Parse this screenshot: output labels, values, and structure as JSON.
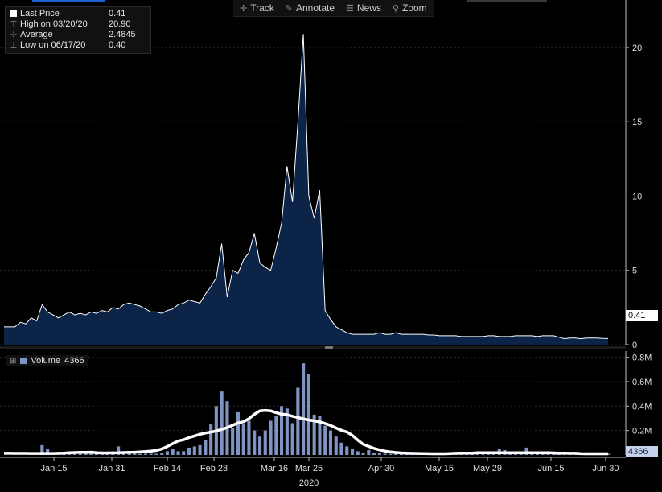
{
  "toolbar": {
    "items": [
      {
        "label": "Track",
        "icon": "crosshair-icon"
      },
      {
        "label": "Annotate",
        "icon": "pencil-icon"
      },
      {
        "label": "News",
        "icon": "news-icon"
      },
      {
        "label": "Zoom",
        "icon": "magnifier-icon"
      }
    ]
  },
  "legend": {
    "last_label": "Last Price",
    "last_value": "0.41",
    "high_label": "High on 03/20/20",
    "high_value": "20.90",
    "avg_label": "Average",
    "avg_value": "2.4845",
    "low_label": "Low on 06/17/20",
    "low_value": "0.40"
  },
  "volume_legend": {
    "label": "Volume",
    "value": "4366"
  },
  "price_tag": "0.41",
  "volume_tag": "4366",
  "colors": {
    "area_fill": "#0b2447",
    "line": "#ffffff",
    "volume_bar": "#8094c4",
    "moving_average": "#ffffff",
    "accent": "#1f5fd6"
  },
  "chart_data": {
    "type": "area",
    "year_label": "2020",
    "x_tick_labels": [
      "Jan 15",
      "Jan 31",
      "Feb 14",
      "Feb 28",
      "Mar 16",
      "Mar 25",
      "Apr 30",
      "May 15",
      "May 29",
      "Jun 15",
      "Jun 30"
    ],
    "price": {
      "ylim": [
        0,
        22
      ],
      "yticks": [
        "0",
        "5",
        "10",
        "15",
        "20"
      ],
      "values": [
        1.2,
        1.2,
        1.2,
        1.5,
        1.4,
        1.8,
        1.6,
        2.7,
        2.2,
        2.0,
        1.8,
        2.0,
        2.2,
        2.0,
        2.1,
        2.0,
        2.2,
        2.1,
        2.3,
        2.2,
        2.5,
        2.4,
        2.7,
        2.8,
        2.7,
        2.6,
        2.4,
        2.2,
        2.2,
        2.1,
        2.3,
        2.4,
        2.7,
        2.8,
        3.0,
        2.9,
        2.8,
        3.4,
        3.9,
        4.5,
        6.8,
        3.2,
        5.0,
        4.8,
        5.7,
        6.2,
        7.5,
        5.5,
        5.2,
        5.0,
        6.5,
        8.2,
        12.0,
        9.6,
        15.0,
        20.9,
        10.0,
        8.5,
        10.4,
        2.3,
        1.7,
        1.2,
        1.0,
        0.8,
        0.7,
        0.7,
        0.7,
        0.7,
        0.7,
        0.8,
        0.7,
        0.7,
        0.8,
        0.7,
        0.7,
        0.7,
        0.7,
        0.7,
        0.65,
        0.65,
        0.6,
        0.6,
        0.6,
        0.6,
        0.55,
        0.55,
        0.55,
        0.55,
        0.55,
        0.6,
        0.6,
        0.55,
        0.55,
        0.55,
        0.6,
        0.6,
        0.6,
        0.6,
        0.55,
        0.6,
        0.6,
        0.6,
        0.5,
        0.4,
        0.45,
        0.45,
        0.4,
        0.45,
        0.45,
        0.45,
        0.42,
        0.41
      ]
    },
    "volume": {
      "ylim": [
        0,
        0.85
      ],
      "unit": "M",
      "yticks": [
        "0.2M",
        "0.4M",
        "0.6M",
        "0.8M"
      ],
      "values": [
        0.0,
        0.0,
        0.0,
        0.0,
        0.0,
        0.0,
        0.0,
        0.08,
        0.05,
        0.01,
        0.01,
        0.01,
        0.01,
        0.01,
        0.01,
        0.01,
        0.01,
        0.01,
        0.02,
        0.02,
        0.02,
        0.07,
        0.03,
        0.02,
        0.01,
        0.01,
        0.01,
        0.01,
        0.01,
        0.02,
        0.03,
        0.05,
        0.03,
        0.03,
        0.06,
        0.07,
        0.08,
        0.12,
        0.25,
        0.4,
        0.52,
        0.44,
        0.22,
        0.35,
        0.25,
        0.28,
        0.2,
        0.15,
        0.2,
        0.28,
        0.32,
        0.4,
        0.38,
        0.26,
        0.55,
        0.75,
        0.66,
        0.33,
        0.32,
        0.24,
        0.2,
        0.15,
        0.1,
        0.07,
        0.05,
        0.03,
        0.02,
        0.04,
        0.02,
        0.02,
        0.01,
        0.01,
        0.01,
        0.01,
        0.01,
        0.01,
        0.01,
        0.01,
        0.01,
        0.01,
        0.01,
        0.01,
        0.01,
        0.01,
        0.01,
        0.01,
        0.01,
        0.01,
        0.01,
        0.01,
        0.01,
        0.05,
        0.04,
        0.02,
        0.02,
        0.02,
        0.06,
        0.02,
        0.01,
        0.01,
        0.01,
        0.01,
        0.01,
        0.01,
        0.01,
        0.01,
        0.01,
        0.01,
        0.01,
        0.01,
        0.01,
        0.01
      ]
    }
  }
}
